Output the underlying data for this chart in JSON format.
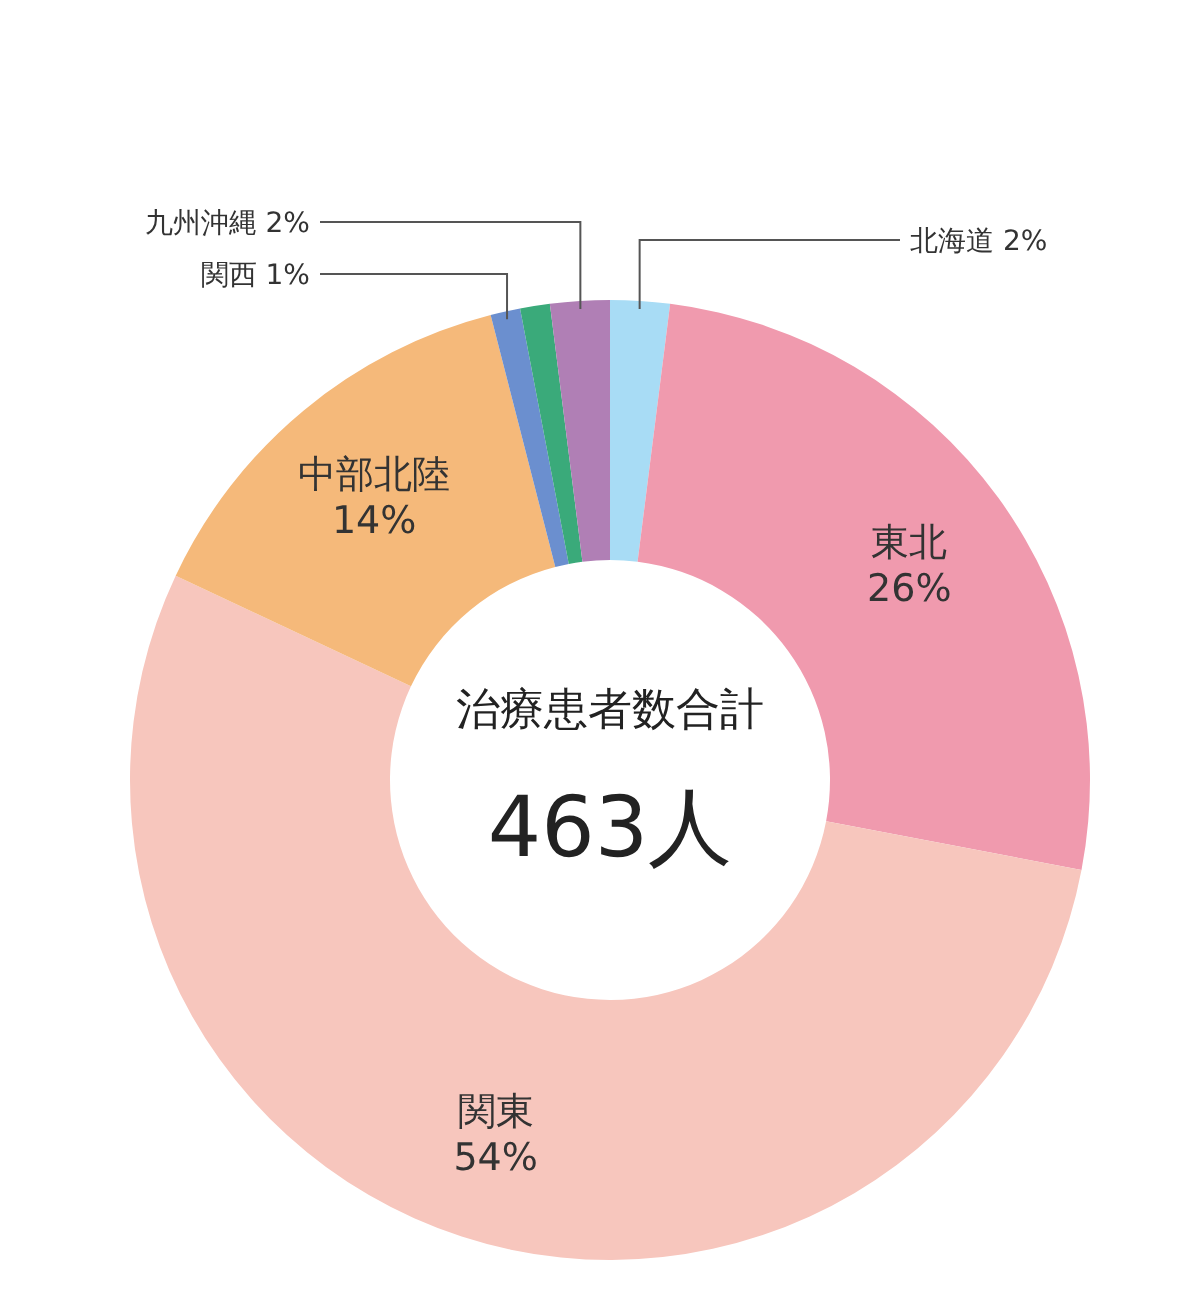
{
  "chart_data": {
    "type": "donut",
    "categories": [
      "北海道",
      "東北",
      "関東",
      "中部北陸",
      "関西",
      null,
      "九州沖縄"
    ],
    "values": [
      2,
      26,
      54,
      14,
      1,
      1,
      2
    ],
    "colors": [
      "#a8dcf5",
      "#f09aae",
      "#f7c6bd",
      "#f5b97a",
      "#6b8fcf",
      "#3aaa7a",
      "#b07fb5"
    ],
    "value_labels": [
      "2%",
      "26%",
      "54%",
      "14%",
      "1%",
      null,
      "2%"
    ],
    "annotations": [
      "治療患者数合計",
      "463人"
    ]
  }
}
